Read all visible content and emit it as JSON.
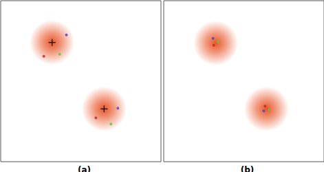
{
  "chart_data": [
    {
      "type": "scatter",
      "title": "(a)",
      "xlim": [
        0,
        234
      ],
      "ylim": [
        0,
        235
      ],
      "tick_labels": false,
      "grid": false,
      "blobs": {
        "x": [
          75,
          151
        ],
        "y": [
          174,
          77
        ],
        "radius": [
          32,
          32
        ],
        "color": "#e8572a"
      },
      "series": [
        {
          "marker": "cross",
          "color": "#000000",
          "x": [
            75,
            151
          ],
          "y": [
            174,
            77
          ]
        },
        {
          "marker": "circle",
          "color": "#4444cc",
          "x": [
            96,
            171
          ],
          "y": [
            185,
            78
          ]
        },
        {
          "marker": "circle",
          "color": "#55cc33",
          "x": [
            86,
            161
          ],
          "y": [
            157,
            55
          ]
        },
        {
          "marker": "circle",
          "color": "#cc2222",
          "x": [
            63,
            139
          ],
          "y": [
            154,
            64
          ]
        }
      ]
    },
    {
      "type": "scatter",
      "title": "(b)",
      "xlim": [
        0,
        234
      ],
      "ylim": [
        0,
        235
      ],
      "tick_labels": false,
      "grid": false,
      "blobs": {
        "x": [
          76,
          150
        ],
        "y": [
          173,
          77
        ],
        "radius": [
          32,
          32
        ],
        "color": "#e8572a"
      },
      "series": [
        {
          "marker": "circle",
          "color": "#4444cc",
          "x": [
            72,
            146
          ],
          "y": [
            180,
            74
          ]
        },
        {
          "marker": "circle",
          "color": "#55cc33",
          "x": [
            79,
            154
          ],
          "y": [
            175,
            76
          ]
        },
        {
          "marker": "circle",
          "color": "#cc2222",
          "x": [
            73,
            148
          ],
          "y": [
            170,
            81
          ]
        }
      ]
    }
  ]
}
